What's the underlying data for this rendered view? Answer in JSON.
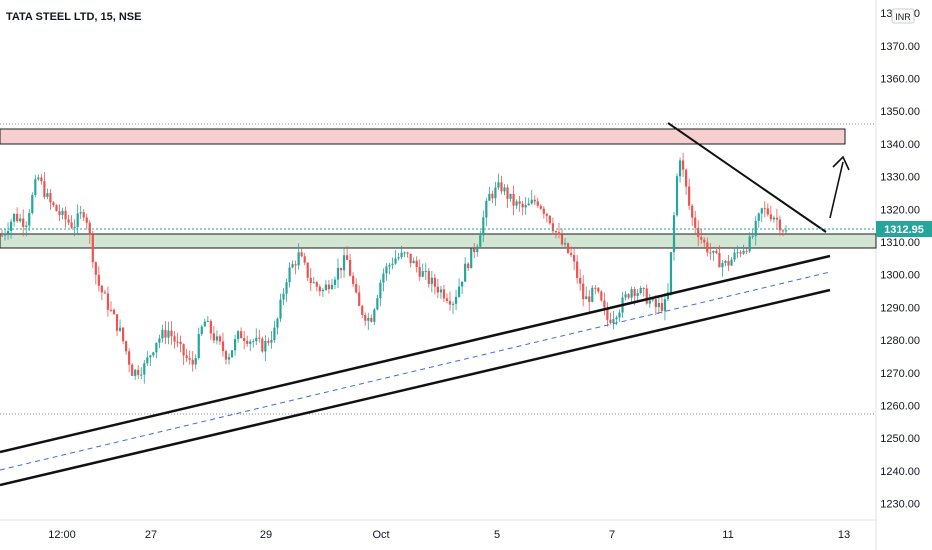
{
  "header": {
    "symbol_title": "TATA STEEL LTD, 15, NSE"
  },
  "price_axis": {
    "currency": "INR",
    "ticks": [
      "1380.00",
      "1370.00",
      "1360.00",
      "1350.00",
      "1340.00",
      "1330.00",
      "1320.00",
      "1310.00",
      "1300.00",
      "1290.00",
      "1280.00",
      "1270.00",
      "1260.00",
      "1250.00",
      "1240.00",
      "1230.00"
    ],
    "current_price": "1312.95"
  },
  "time_axis": {
    "ticks": [
      "12:00",
      "27",
      "29",
      "Oct",
      "5",
      "7",
      "11",
      "13"
    ]
  },
  "chart_data": {
    "type": "candlestick",
    "title": "TATA STEEL LTD, 15, NSE",
    "y_unit": "INR",
    "ylim": [
      1225,
      1384
    ],
    "x_labels": [
      "12:00",
      "27",
      "29",
      "Oct",
      "5",
      "7",
      "11",
      "13"
    ],
    "last_price": 1312.95,
    "up_color": "#26a69a",
    "down_color": "#ef5350",
    "series_close_approx": [
      1312,
      1318,
      1316,
      1330,
      1322,
      1318,
      1315,
      1320,
      1298,
      1290,
      1282,
      1270,
      1272,
      1280,
      1283,
      1277,
      1272,
      1286,
      1280,
      1275,
      1282,
      1280,
      1278,
      1283,
      1300,
      1306,
      1298,
      1295,
      1300,
      1305,
      1290,
      1286,
      1300,
      1305,
      1306,
      1302,
      1298,
      1295,
      1292,
      1302,
      1310,
      1324,
      1327,
      1322,
      1320,
      1323,
      1318,
      1310,
      1305,
      1292,
      1295,
      1286,
      1290,
      1296,
      1294,
      1290,
      1291,
      1338,
      1318,
      1310,
      1305,
      1303,
      1307,
      1310,
      1320,
      1318,
      1312.95
    ],
    "annotations": {
      "resistance_zone": [
        1338,
        1342
      ],
      "support_zone": [
        1307.5,
        1311.5
      ],
      "upper_trendline": [
        [
          1295,
          1306
        ]
      ],
      "lower_channel": [
        [
          1238,
          1296
        ]
      ],
      "mid_dashed": [
        [
          1243,
          1301
        ]
      ],
      "upper_channel": [
        [
          1248,
          1306
        ]
      ],
      "descending_line": [
        [
          1344,
          1312
        ]
      ],
      "dotted_levels": [
        1344,
        1258
      ]
    }
  }
}
